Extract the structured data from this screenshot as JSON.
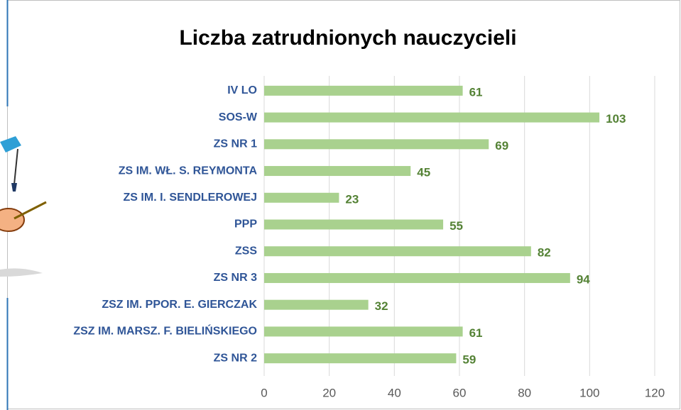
{
  "chart_data": {
    "type": "bar",
    "orientation": "horizontal",
    "title": "Liczba zatrudnionych nauczycieli",
    "categories": [
      "IV LO",
      "SOS-W",
      "ZS NR 1",
      "ZS IM. WŁ. S. REYMONTA",
      "ZS IM. I. SENDLEROWEJ",
      "PPP",
      "ZSS",
      "ZS NR 3",
      "ZSZ IM. PPOR. E. GIERCZAK",
      "ZSZ IM. MARSZ. F. BIELIŃSKIEGO",
      "ZS NR 2"
    ],
    "values": [
      61,
      103,
      69,
      45,
      23,
      55,
      82,
      94,
      32,
      61,
      59
    ],
    "color": "#a9d18e",
    "label_color": "#548235",
    "category_color": "#2f5597",
    "xlim": [
      0,
      120
    ],
    "xticks": [
      0,
      20,
      40,
      60,
      80,
      100,
      120
    ],
    "grid": true
  }
}
